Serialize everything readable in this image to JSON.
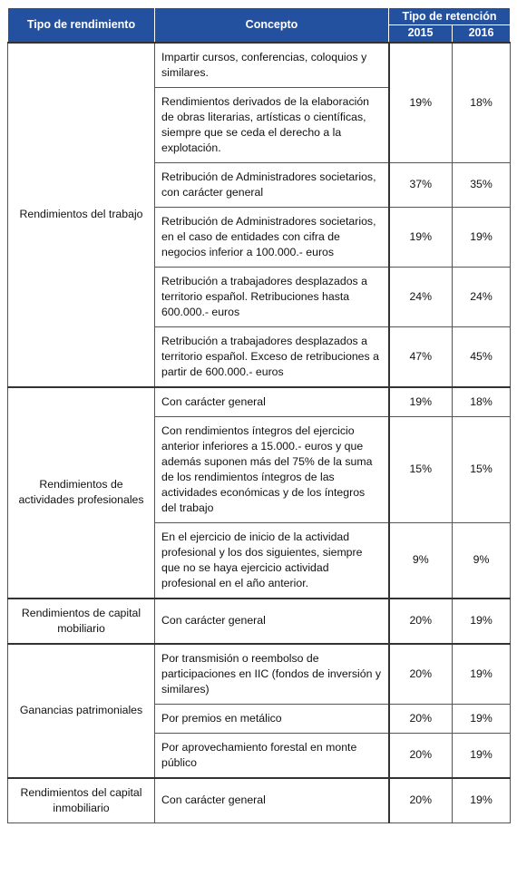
{
  "header": {
    "tipo": "Tipo de rendimiento",
    "concepto": "Concepto",
    "retencion": "Tipo de retención",
    "years": [
      "2015",
      "2016"
    ]
  },
  "groups": [
    {
      "tipo": "Rendimientos del trabajo",
      "rows": [
        {
          "conceptos": [
            "Impartir cursos, conferencias, coloquios y similares.",
            "Rendimientos derivados de la elaboración de obras literarias, artísticas o científicas, siempre que se ceda el derecho a la explotación."
          ],
          "r2015": "19%",
          "r2016": "18%"
        },
        {
          "conceptos": [
            "Retribución de Administradores societarios, con carácter general"
          ],
          "r2015": "37%",
          "r2016": "35%"
        },
        {
          "conceptos": [
            "Retribución de Administradores societarios, en el caso de entidades con cifra de negocios inferior a 100.000.- euros"
          ],
          "r2015": "19%",
          "r2016": "19%"
        },
        {
          "conceptos": [
            "Retribución a trabajadores desplazados a territorio español. Retribuciones hasta 600.000.- euros"
          ],
          "r2015": "24%",
          "r2016": "24%"
        },
        {
          "conceptos": [
            "Retribución a trabajadores desplazados a territorio español. Exceso de retribuciones a partir de 600.000.- euros"
          ],
          "r2015": "47%",
          "r2016": "45%"
        }
      ]
    },
    {
      "tipo": "Rendimientos de actividades profesionales",
      "rows": [
        {
          "conceptos": [
            "Con carácter general"
          ],
          "r2015": "19%",
          "r2016": "18%"
        },
        {
          "conceptos": [
            "Con rendimientos íntegros del ejercicio anterior inferiores a 15.000.- euros y que además suponen más del 75% de la suma de los rendimientos íntegros de las actividades económicas y de los íntegros del trabajo"
          ],
          "r2015": "15%",
          "r2016": "15%"
        },
        {
          "conceptos": [
            "En el ejercicio de inicio de la actividad profesional y los dos siguientes, siempre que no se haya ejercicio actividad profesional en el año anterior."
          ],
          "r2015": "9%",
          "r2016": "9%"
        }
      ]
    },
    {
      "tipo": "Rendimientos de capital mobiliario",
      "rows": [
        {
          "conceptos": [
            "Con carácter general"
          ],
          "r2015": "20%",
          "r2016": "19%"
        }
      ]
    },
    {
      "tipo": "Ganancias patrimoniales",
      "rows": [
        {
          "conceptos": [
            "Por transmisión o reembolso de participaciones en IIC (fondos de inversión y similares)"
          ],
          "r2015": "20%",
          "r2016": "19%"
        },
        {
          "conceptos": [
            "Por premios en metálico"
          ],
          "r2015": "20%",
          "r2016": "19%"
        },
        {
          "conceptos": [
            "Por aprovechamiento forestal en monte público"
          ],
          "r2015": "20%",
          "r2016": "19%"
        }
      ]
    },
    {
      "tipo": "Rendimientos del capital inmobiliario",
      "rows": [
        {
          "conceptos": [
            "Con carácter general"
          ],
          "r2015": "20%",
          "r2016": "19%"
        }
      ]
    }
  ]
}
